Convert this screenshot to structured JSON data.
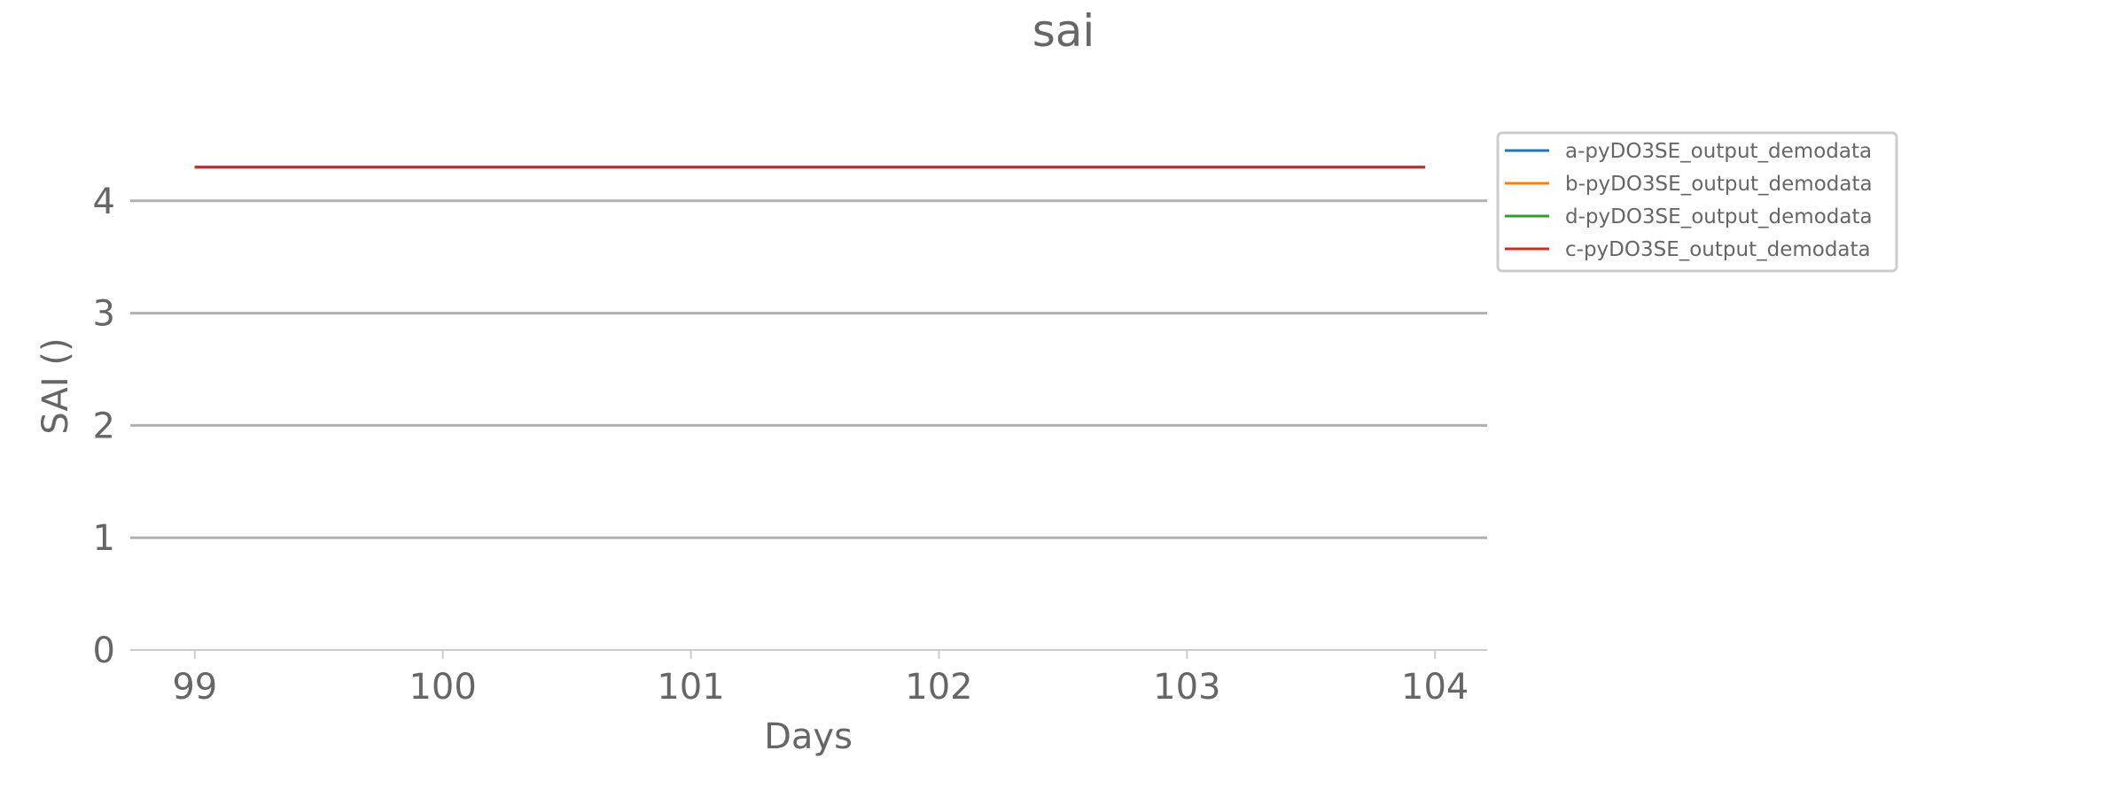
{
  "chart_data": {
    "type": "line",
    "title": "sai",
    "xlabel": "Days",
    "ylabel": "SAI ()",
    "xlim": [
      98.74,
      104.21
    ],
    "ylim": [
      0,
      5.0
    ],
    "x_ticks": [
      99,
      100,
      101,
      102,
      103,
      104
    ],
    "x_tick_labels": [
      "99",
      "100",
      "101",
      "102",
      "103",
      "104"
    ],
    "y_ticks": [
      0,
      1,
      2,
      3,
      4
    ],
    "y_tick_labels": [
      "0",
      "1",
      "2",
      "3",
      "4"
    ],
    "grid": "horizontal",
    "legend_position": "right",
    "series": [
      {
        "name": "a-pyDO3SE_output_demodata",
        "color": "#1f77b4",
        "x": [
          99,
          103.96
        ],
        "y": [
          4.3,
          4.3
        ]
      },
      {
        "name": "b-pyDO3SE_output_demodata",
        "color": "#ff7f0e",
        "x": [
          99,
          103.96
        ],
        "y": [
          4.3,
          4.3
        ]
      },
      {
        "name": "d-pyDO3SE_output_demodata",
        "color": "#2ca02c",
        "x": [
          99,
          103.96
        ],
        "y": [
          4.3,
          4.3
        ]
      },
      {
        "name": "c-pyDO3SE_output_demodata",
        "color": "#d62728",
        "x": [
          99,
          103.96
        ],
        "y": [
          4.3,
          4.3
        ]
      }
    ]
  }
}
